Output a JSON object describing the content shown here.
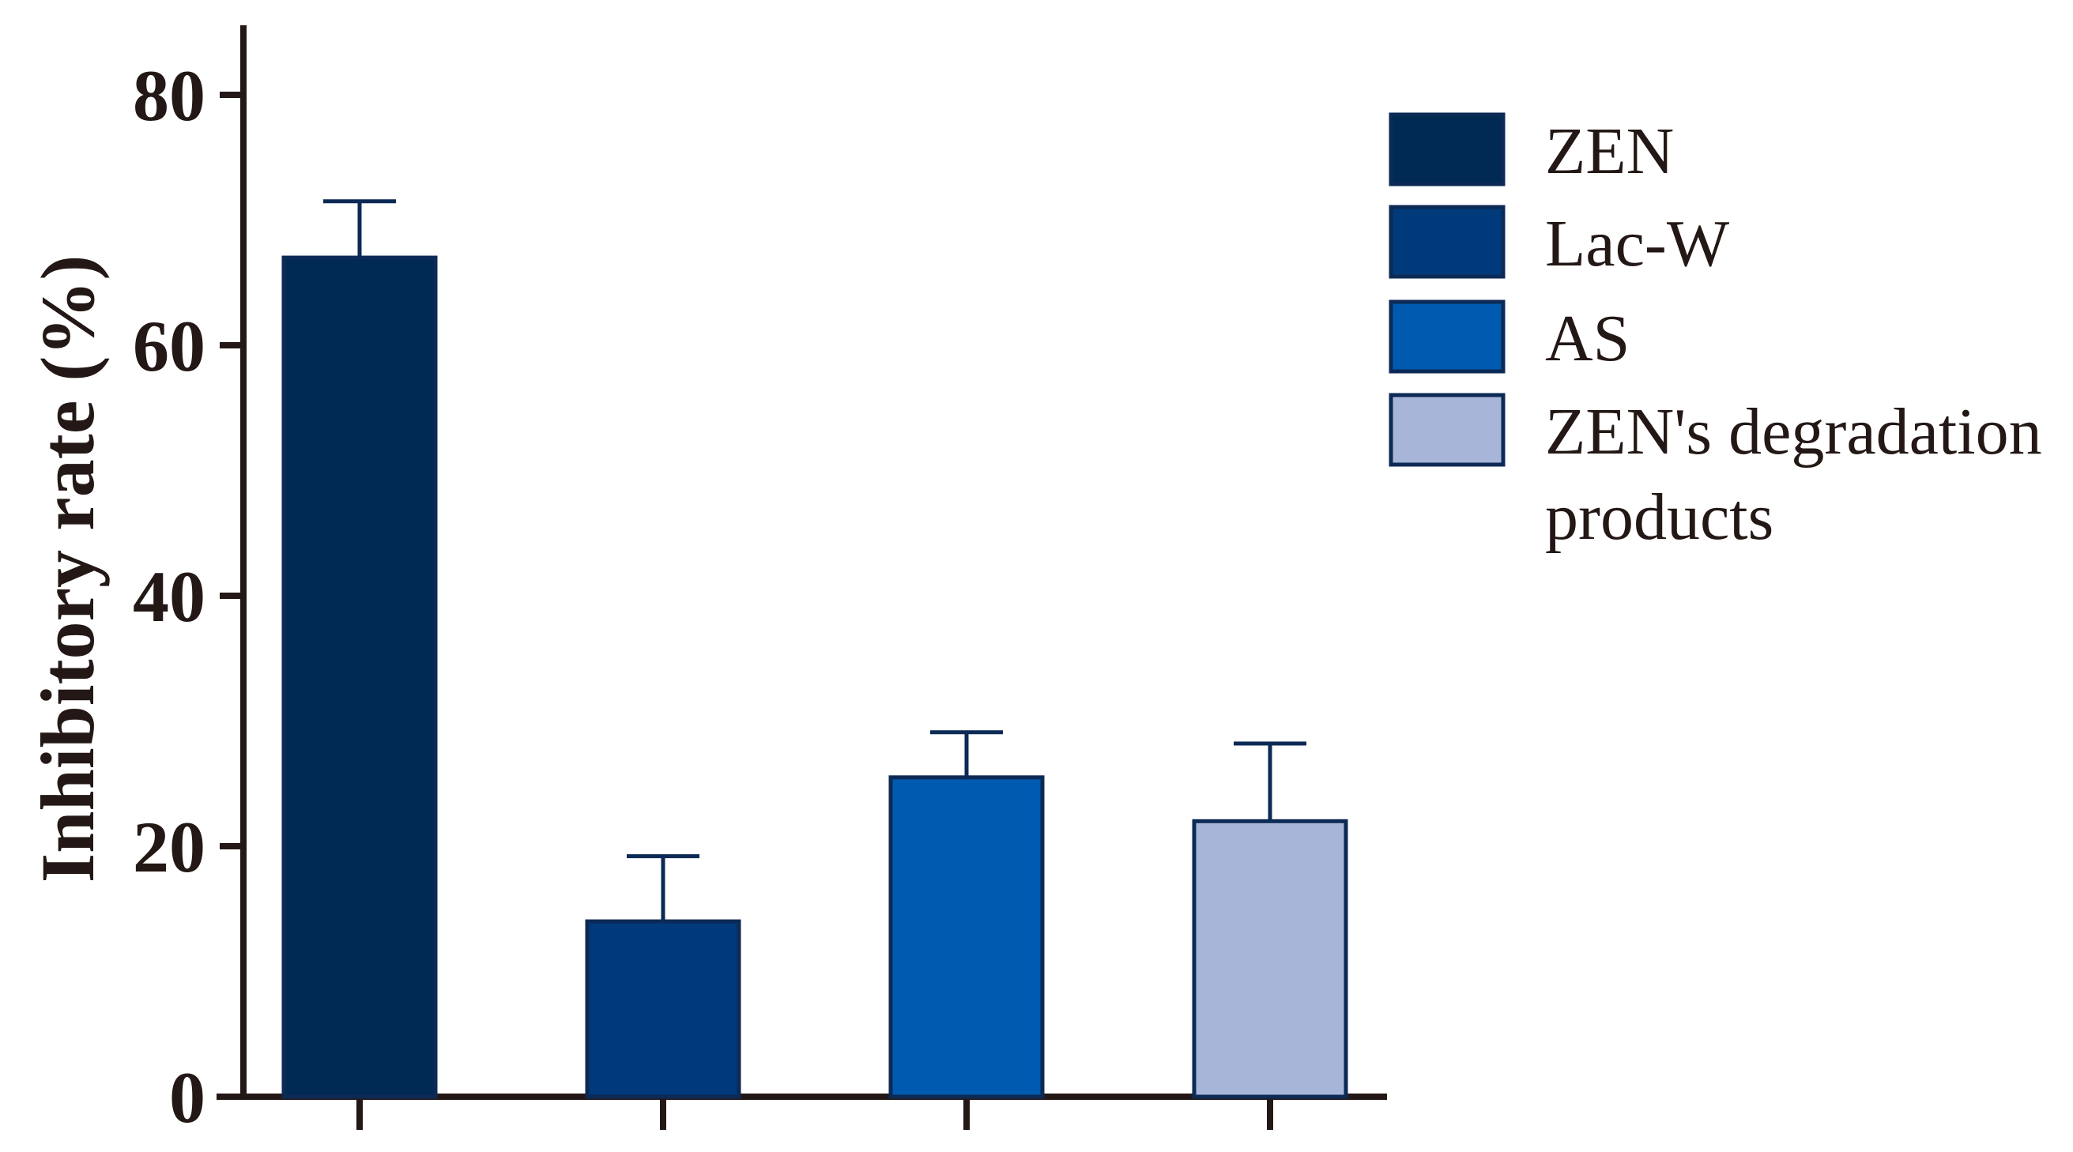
{
  "chart_data": {
    "type": "bar",
    "categories": [
      "ZEN",
      "Lac-W",
      "AS",
      "ZEN's degradation products"
    ],
    "values": [
      67,
      14,
      25.5,
      22
    ],
    "errors": [
      4.5,
      5.2,
      3.6,
      6.2
    ],
    "colors": [
      "#002a52",
      "#003a7a",
      "#005ab0",
      "#a7b6d8"
    ],
    "ylabel": "Inhibitory  rate (%)",
    "ylim": [
      0,
      85
    ],
    "yticks": [
      0,
      20,
      40,
      60,
      80
    ],
    "ytick_labels": [
      "0",
      "20",
      "40",
      "60",
      "80"
    ],
    "legend": {
      "position": "right",
      "entries": [
        {
          "lines": [
            "ZEN"
          ]
        },
        {
          "lines": [
            "Lac-W"
          ]
        },
        {
          "lines": [
            "AS"
          ]
        },
        {
          "lines": [
            "ZEN's degradation",
            "products"
          ]
        }
      ]
    },
    "axis_color": "#231815",
    "grid": false
  }
}
